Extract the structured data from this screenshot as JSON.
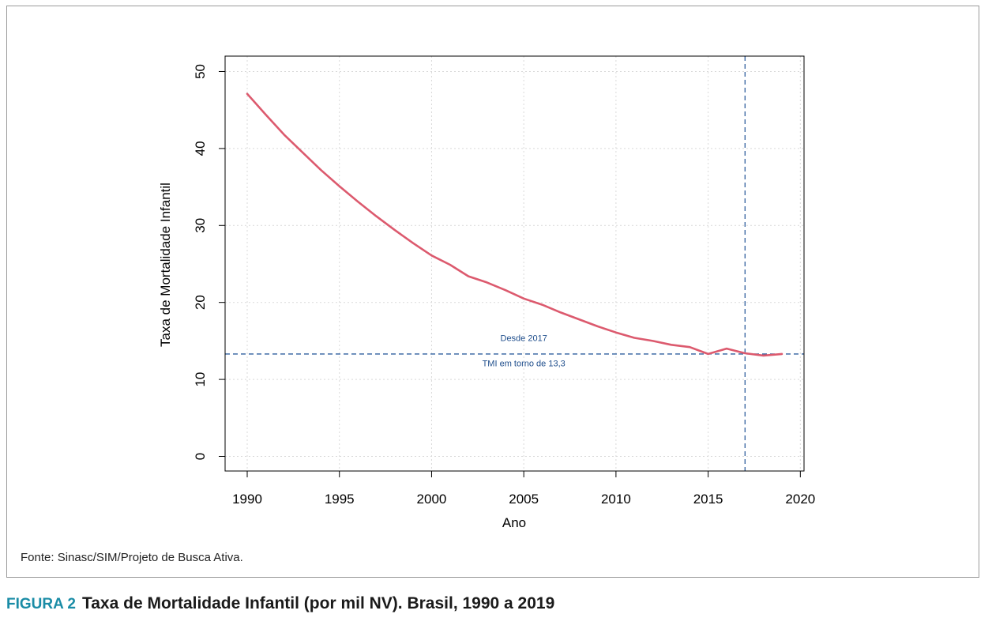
{
  "chart_data": {
    "type": "line",
    "xlabel": "Ano",
    "ylabel": "Taxa de Mortalidade Infantil",
    "xlim": [
      1988.8,
      2020.2
    ],
    "ylim": [
      -1.9,
      52
    ],
    "xticks": [
      1990,
      1995,
      2000,
      2005,
      2010,
      2015,
      2020
    ],
    "yticks": [
      0,
      10,
      20,
      30,
      40,
      50
    ],
    "grid": true,
    "series": [
      {
        "color": "#dc5a6e",
        "x": [
          1990,
          1991,
          1992,
          1993,
          1994,
          1995,
          1996,
          1997,
          1998,
          1999,
          2000,
          2001,
          2002,
          2003,
          2004,
          2005,
          2006,
          2007,
          2008,
          2009,
          2010,
          2011,
          2012,
          2013,
          2014,
          2015,
          2016,
          2017,
          2018,
          2019
        ],
        "y": [
          47.1,
          44.4,
          41.8,
          39.5,
          37.2,
          35.1,
          33.1,
          31.2,
          29.4,
          27.7,
          26.1,
          24.9,
          23.4,
          22.6,
          21.6,
          20.5,
          19.7,
          18.7,
          17.8,
          16.9,
          16.1,
          15.4,
          15.0,
          14.5,
          14.2,
          13.3,
          14.0,
          13.4,
          13.1,
          13.3
        ]
      }
    ],
    "reference_lines": {
      "horizontal": {
        "y": 13.3,
        "color": "#2f5f9e"
      },
      "vertical": {
        "x": 2017,
        "color": "#2f5f9e"
      }
    },
    "annotations": [
      {
        "text": "Desde 2017",
        "x": 2005.0,
        "y": 15.0,
        "color": "#1f4e8c"
      },
      {
        "text": "TMI em torno de 13,3",
        "x": 2005.0,
        "y": 11.7,
        "color": "#1f4e8c"
      }
    ]
  },
  "source": "Fonte: Sinasc/SIM/Projeto de Busca Ativa.",
  "caption": {
    "label": "FIGURA 2",
    "text": "Taxa de Mortalidade Infantil (por mil NV). Brasil, 1990 a 2019",
    "label_color": "#1a8ca6"
  }
}
